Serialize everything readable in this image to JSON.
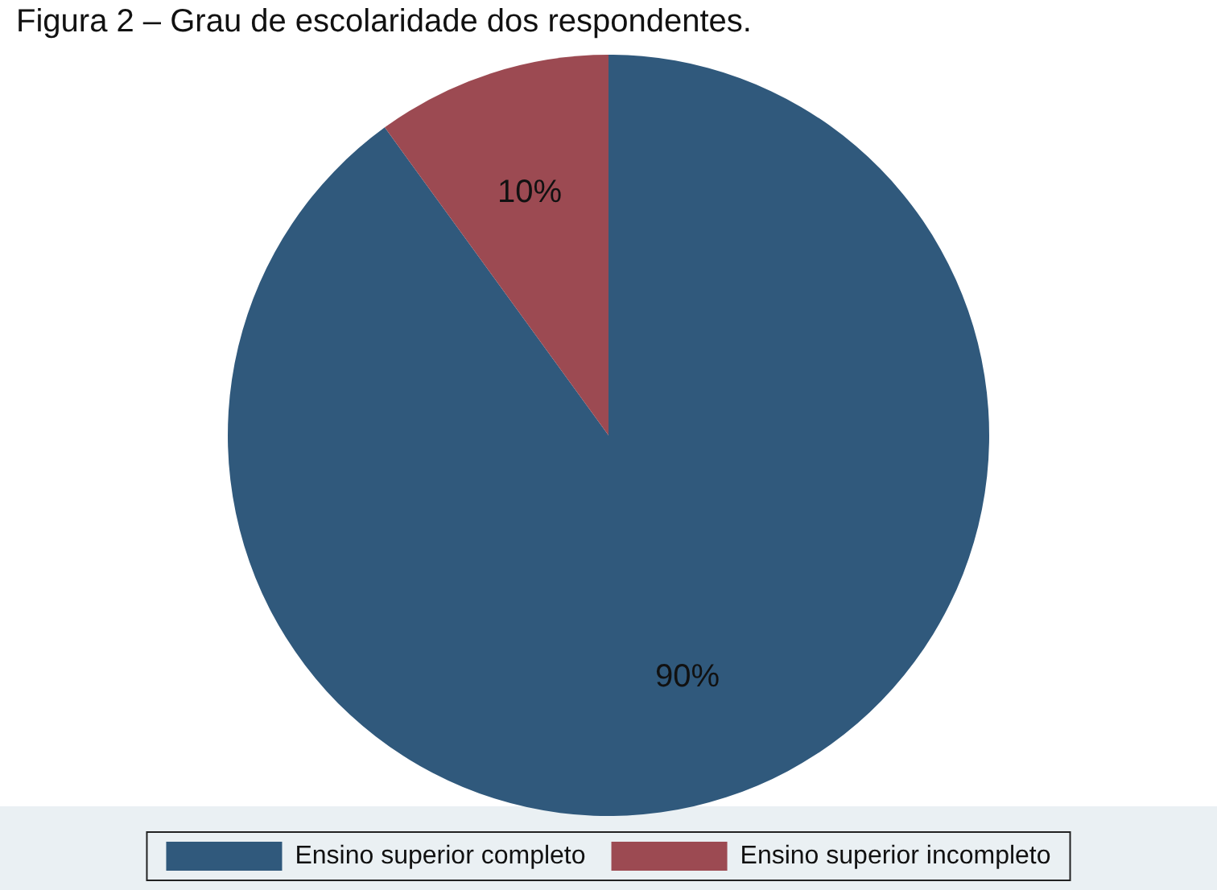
{
  "chart_data": {
    "type": "pie",
    "title": "Figura 2 – Grau de escolaridade dos respondentes.",
    "categories": [
      "Ensino superior completo",
      "Ensino superior incompleto"
    ],
    "values": [
      90,
      10
    ],
    "colors": [
      "#30597c",
      "#9c4a52"
    ],
    "value_labels": [
      "90%",
      "10%"
    ],
    "legend": "bottom"
  }
}
